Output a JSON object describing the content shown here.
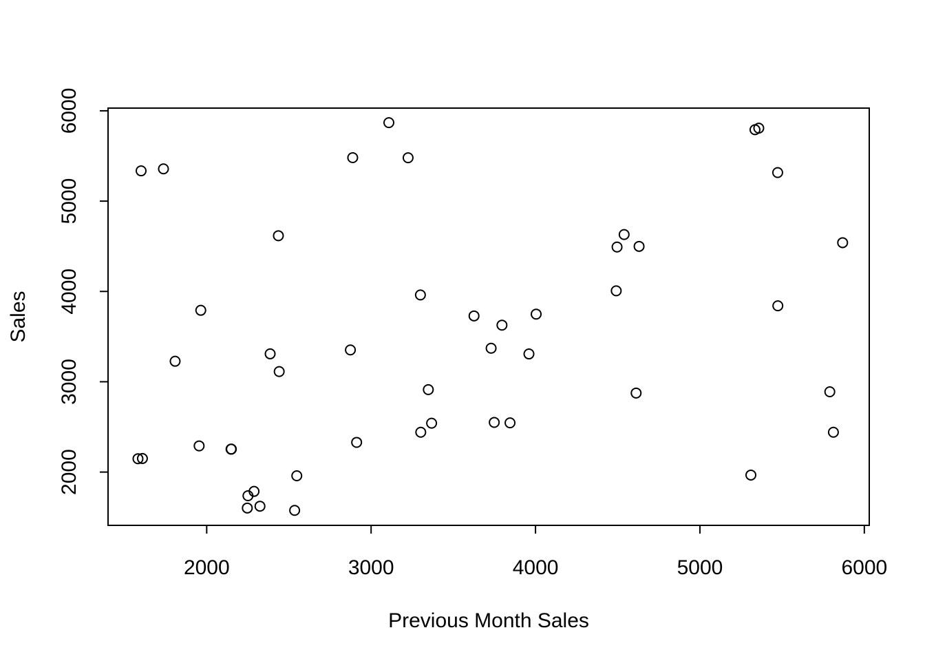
{
  "chart_data": {
    "type": "scatter",
    "title": "",
    "xlabel": "Previous Month Sales",
    "ylabel": "Sales",
    "xlim": [
      1400,
      6030
    ],
    "ylim": [
      1410,
      6030
    ],
    "xticks": [
      2000,
      3000,
      4000,
      5000,
      6000
    ],
    "yticks": [
      2000,
      3000,
      4000,
      5000,
      6000
    ],
    "xtick_labels": [
      "2000",
      "3000",
      "4000",
      "5000",
      "6000"
    ],
    "ytick_labels": [
      "2000",
      "3000",
      "4000",
      "5000",
      "6000"
    ],
    "grid": false,
    "legend": "none",
    "marker": "open-circle",
    "points": [
      {
        "x": 1582,
        "y": 2148
      },
      {
        "x": 1609,
        "y": 2150
      },
      {
        "x": 1601,
        "y": 5335
      },
      {
        "x": 1737,
        "y": 5357
      },
      {
        "x": 1808,
        "y": 3227
      },
      {
        "x": 1954,
        "y": 2290
      },
      {
        "x": 1964,
        "y": 3791
      },
      {
        "x": 2148,
        "y": 2254
      },
      {
        "x": 2150,
        "y": 2254
      },
      {
        "x": 2247,
        "y": 1602
      },
      {
        "x": 2251,
        "y": 1738
      },
      {
        "x": 2288,
        "y": 1786
      },
      {
        "x": 2324,
        "y": 1622
      },
      {
        "x": 2386,
        "y": 3309
      },
      {
        "x": 2436,
        "y": 4617
      },
      {
        "x": 2441,
        "y": 3113
      },
      {
        "x": 2535,
        "y": 1576
      },
      {
        "x": 2548,
        "y": 1959
      },
      {
        "x": 2874,
        "y": 3352
      },
      {
        "x": 2888,
        "y": 5481
      },
      {
        "x": 2912,
        "y": 2329
      },
      {
        "x": 3108,
        "y": 5869
      },
      {
        "x": 3225,
        "y": 5480
      },
      {
        "x": 3300,
        "y": 3961
      },
      {
        "x": 3302,
        "y": 2441
      },
      {
        "x": 3348,
        "y": 2913
      },
      {
        "x": 3368,
        "y": 2541
      },
      {
        "x": 3626,
        "y": 3729
      },
      {
        "x": 3730,
        "y": 3371
      },
      {
        "x": 3749,
        "y": 2550
      },
      {
        "x": 3796,
        "y": 3627
      },
      {
        "x": 3845,
        "y": 2545
      },
      {
        "x": 3960,
        "y": 3308
      },
      {
        "x": 4004,
        "y": 3749
      },
      {
        "x": 4491,
        "y": 4007
      },
      {
        "x": 4496,
        "y": 4492
      },
      {
        "x": 4539,
        "y": 4630
      },
      {
        "x": 4612,
        "y": 2875
      },
      {
        "x": 4630,
        "y": 4499
      },
      {
        "x": 5310,
        "y": 1967
      },
      {
        "x": 5335,
        "y": 5791
      },
      {
        "x": 5358,
        "y": 5808
      },
      {
        "x": 5473,
        "y": 5316
      },
      {
        "x": 5474,
        "y": 3841
      },
      {
        "x": 5790,
        "y": 2889
      },
      {
        "x": 5812,
        "y": 2441
      },
      {
        "x": 5868,
        "y": 4540
      }
    ]
  }
}
